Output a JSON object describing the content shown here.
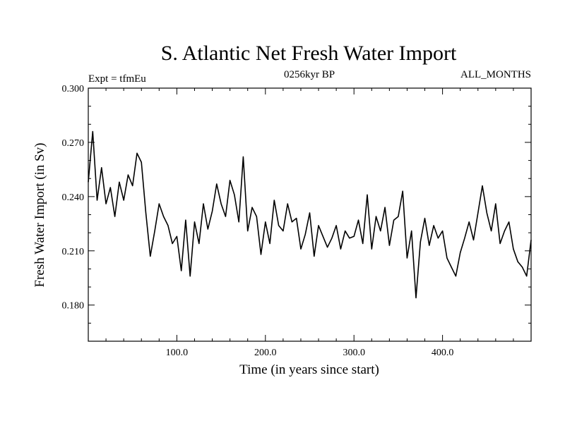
{
  "chart_data": {
    "type": "line",
    "title": "S. Atlantic Net Fresh Water Import",
    "subtitle_left": "Expt = tfmEu",
    "subtitle_center": "0256kyr BP",
    "subtitle_right": "ALL_MONTHS",
    "xlabel": "Time (in years since start)",
    "ylabel": "Fresh Water Import (in Sv)",
    "xlim": [
      0,
      500
    ],
    "ylim": [
      0.16,
      0.3
    ],
    "x_ticks": [
      100,
      200,
      300,
      400
    ],
    "x_tick_labels": [
      "100.0",
      "200.0",
      "300.0",
      "400.0"
    ],
    "y_ticks": [
      0.18,
      0.21,
      0.24,
      0.27,
      0.3
    ],
    "y_tick_labels": [
      "0.180",
      "0.210",
      "0.240",
      "0.270",
      "0.300"
    ],
    "series": [
      {
        "name": "Net Fresh Water Import",
        "x": [
          0,
          5,
          10,
          15,
          20,
          25,
          30,
          35,
          40,
          45,
          50,
          55,
          60,
          65,
          70,
          75,
          80,
          85,
          90,
          95,
          100,
          105,
          110,
          115,
          120,
          125,
          130,
          135,
          140,
          145,
          150,
          155,
          160,
          165,
          170,
          175,
          180,
          185,
          190,
          195,
          200,
          205,
          210,
          215,
          220,
          225,
          230,
          235,
          240,
          245,
          250,
          255,
          260,
          265,
          270,
          275,
          280,
          285,
          290,
          295,
          300,
          305,
          310,
          315,
          320,
          325,
          330,
          335,
          340,
          345,
          350,
          355,
          360,
          365,
          370,
          375,
          380,
          385,
          390,
          395,
          400,
          405,
          410,
          415,
          420,
          425,
          430,
          435,
          440,
          445,
          450,
          455,
          460,
          465,
          470,
          475,
          480,
          485,
          490,
          495,
          500
        ],
        "values": [
          0.248,
          0.276,
          0.238,
          0.256,
          0.236,
          0.245,
          0.229,
          0.248,
          0.238,
          0.252,
          0.246,
          0.264,
          0.259,
          0.231,
          0.207,
          0.221,
          0.236,
          0.229,
          0.224,
          0.214,
          0.218,
          0.199,
          0.227,
          0.196,
          0.226,
          0.214,
          0.236,
          0.222,
          0.232,
          0.247,
          0.236,
          0.229,
          0.249,
          0.241,
          0.226,
          0.262,
          0.221,
          0.234,
          0.229,
          0.208,
          0.226,
          0.214,
          0.238,
          0.224,
          0.221,
          0.236,
          0.226,
          0.228,
          0.211,
          0.219,
          0.231,
          0.207,
          0.224,
          0.218,
          0.212,
          0.217,
          0.224,
          0.211,
          0.221,
          0.217,
          0.218,
          0.227,
          0.214,
          0.241,
          0.211,
          0.229,
          0.221,
          0.234,
          0.213,
          0.227,
          0.229,
          0.243,
          0.206,
          0.221,
          0.184,
          0.215,
          0.228,
          0.213,
          0.224,
          0.217,
          0.221,
          0.206,
          0.201,
          0.196,
          0.209,
          0.217,
          0.226,
          0.216,
          0.231,
          0.246,
          0.231,
          0.221,
          0.236,
          0.214,
          0.221,
          0.226,
          0.211,
          0.204,
          0.201,
          0.196,
          0.216
        ]
      }
    ]
  }
}
